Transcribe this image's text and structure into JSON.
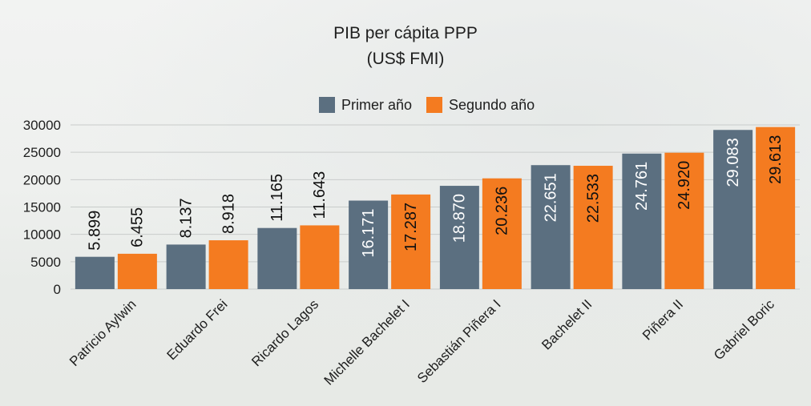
{
  "chart_data": {
    "type": "bar",
    "title": "PIB per cápita PPP",
    "subtitle": "(US$ FMI)",
    "categories": [
      "Patricio Aylwin",
      "Eduardo Frei",
      "Ricardo Lagos",
      "Michelle Bachelet I",
      "Sebastián Piñera I",
      "Bachelet II",
      "Piñera II",
      "Gabriel Boric"
    ],
    "series": [
      {
        "name": "Primer año",
        "color": "#5b6f80",
        "values": [
          5899,
          8137,
          11165,
          16171,
          18870,
          22651,
          24761,
          29083
        ],
        "labels": [
          "5.899",
          "8.137",
          "11.165",
          "16.171",
          "18.870",
          "22.651",
          "24.761",
          "29.083"
        ]
      },
      {
        "name": "Segundo año",
        "color": "#f47b20",
        "values": [
          6455,
          8918,
          11643,
          17287,
          20236,
          22533,
          24920,
          29613
        ],
        "labels": [
          "6.455",
          "8.918",
          "11.643",
          "17.287",
          "20.236",
          "22.533",
          "24.920",
          "29.613"
        ]
      }
    ],
    "yticks": [
      0,
      5000,
      10000,
      15000,
      20000,
      25000,
      30000
    ],
    "ylim": [
      0,
      30000
    ],
    "legend": "top-center",
    "grid": true
  }
}
